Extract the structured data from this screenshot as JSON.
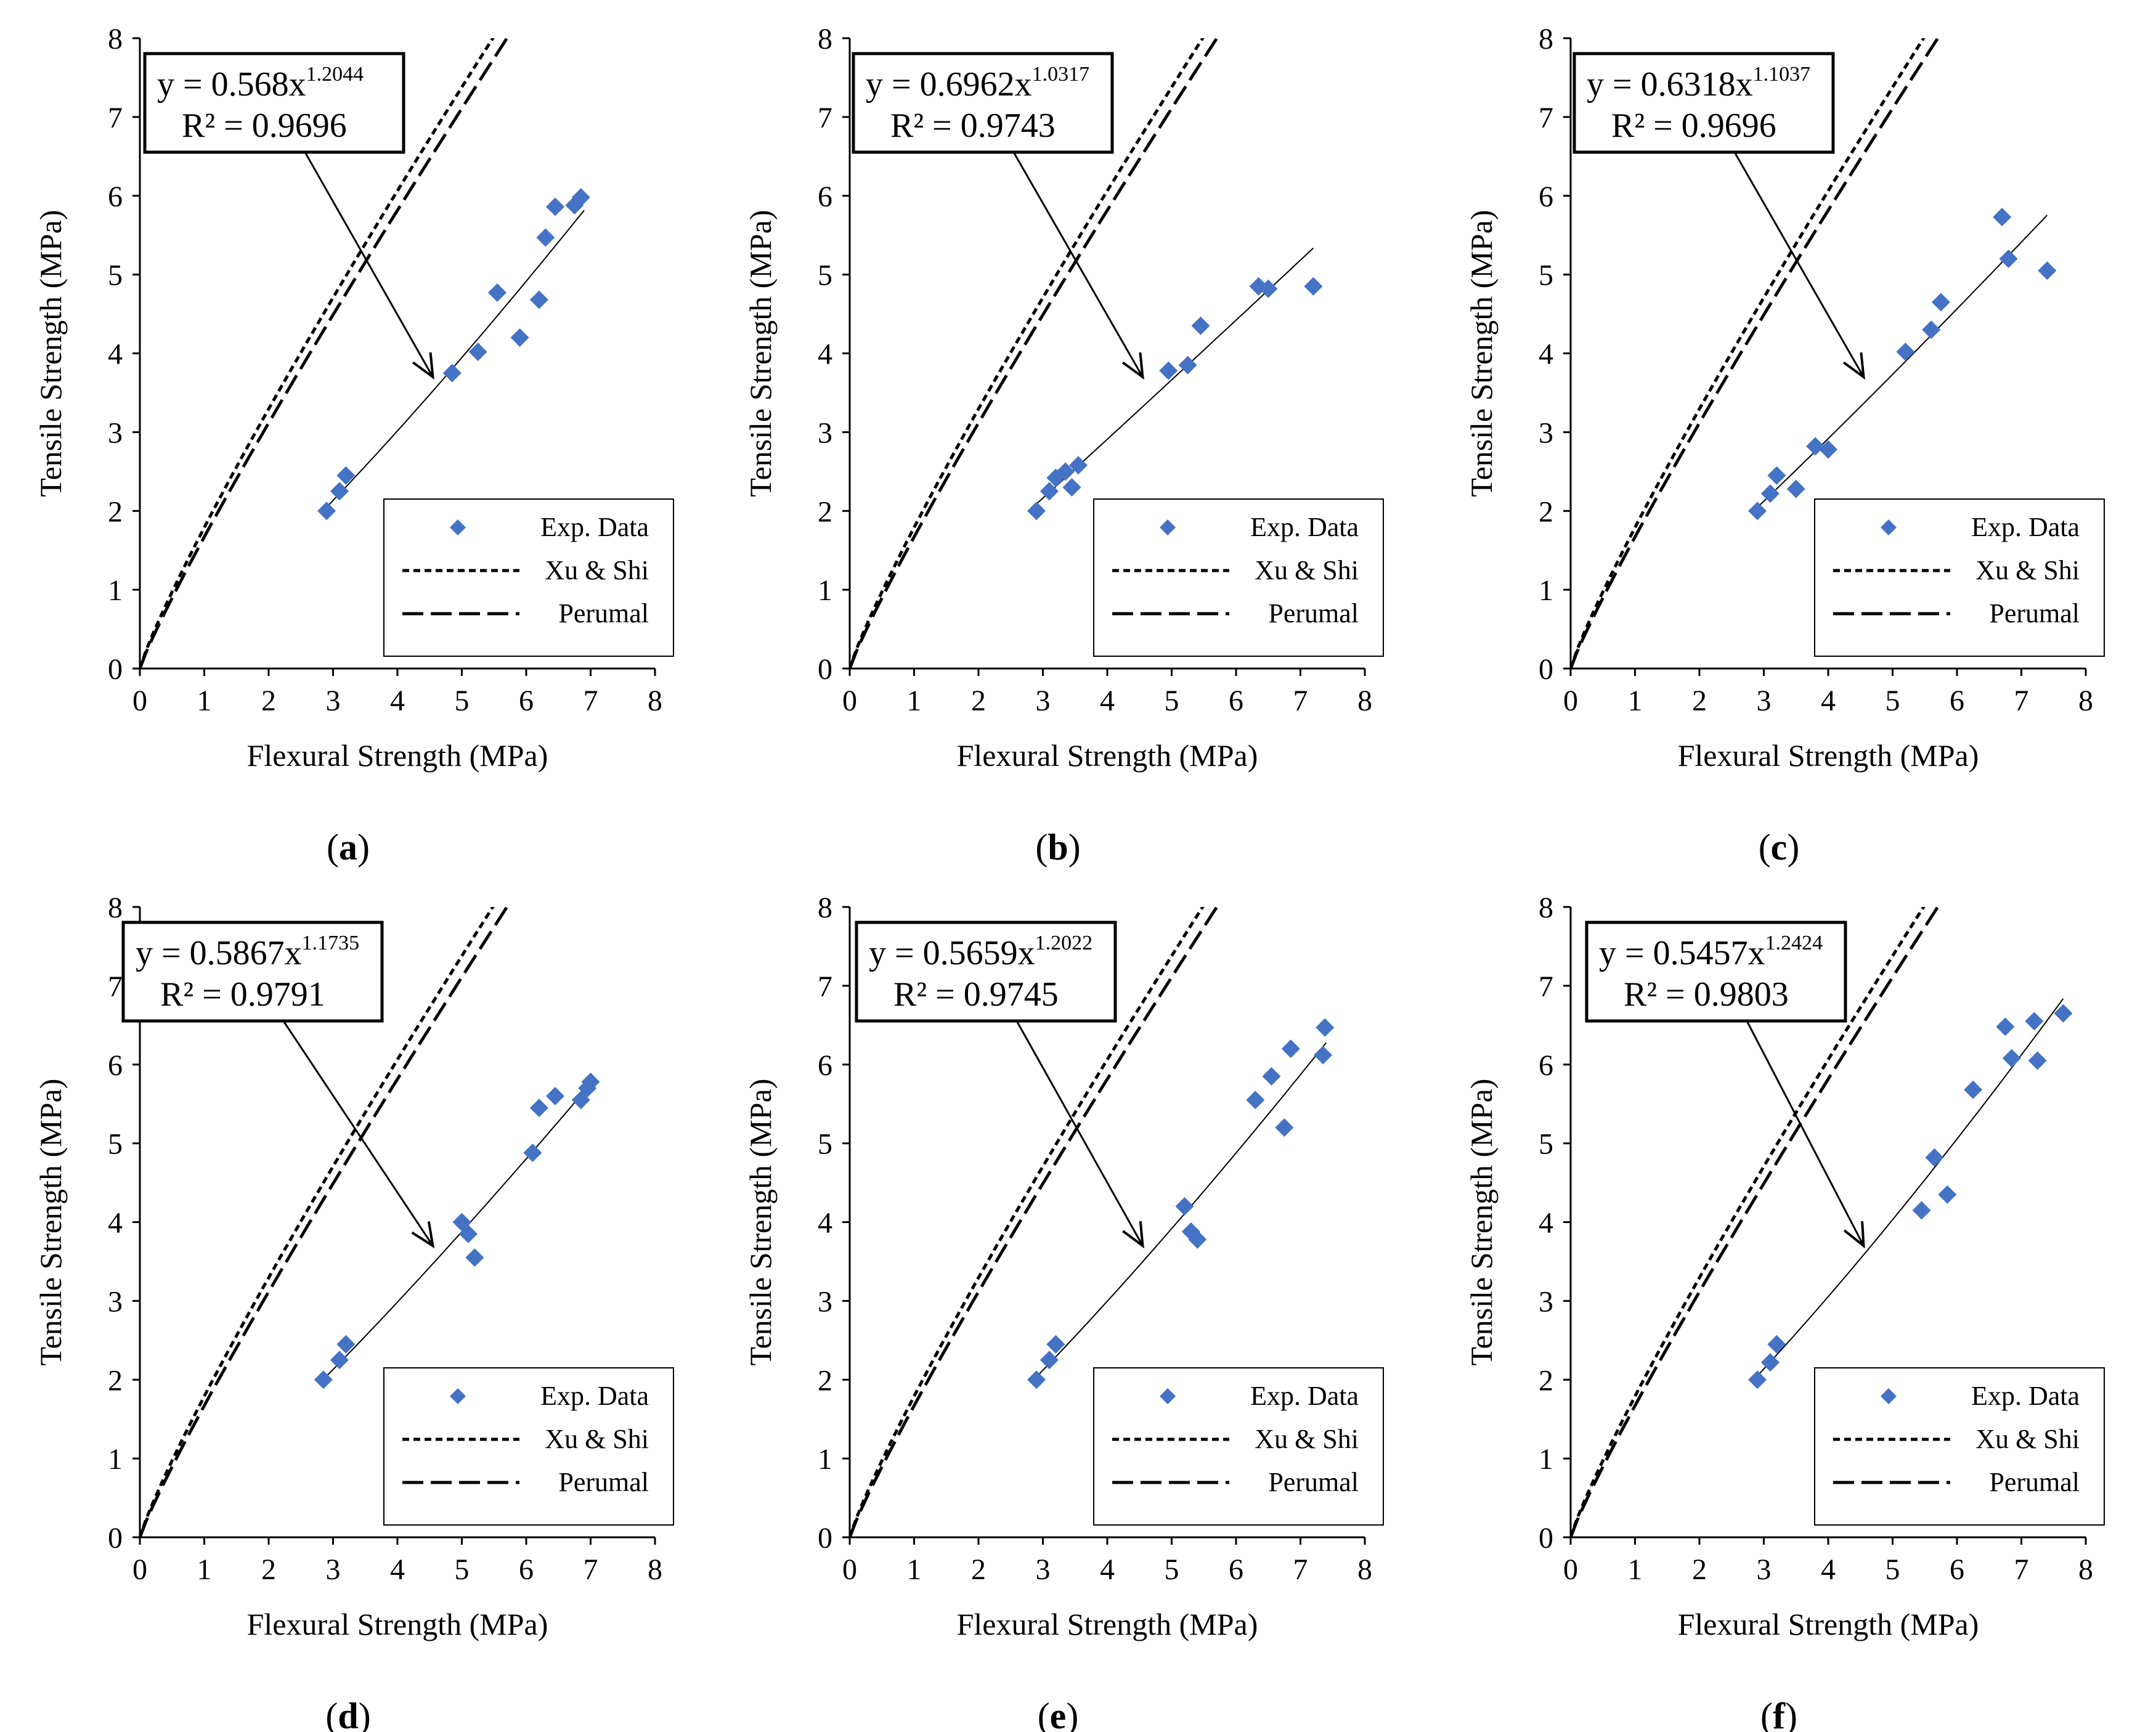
{
  "figure": {
    "x_axis_label": "Flexural Strength (MPa)",
    "y_axis_label": "Tensile Strength (MPa)",
    "legend": {
      "exp": "Exp. Data",
      "xu": "Xu & Shi",
      "perumal": "Perumal"
    },
    "colors": {
      "exp_marker": "#4472C4",
      "lines": "#000000"
    }
  },
  "chart_data": [
    {
      "id": "a",
      "caption": "a",
      "type": "scatter",
      "xlabel": "Flexural Strength (MPa)",
      "ylabel": "Tensile Strength (MPa)",
      "xlim": [
        0,
        8
      ],
      "ylim": [
        0,
        8
      ],
      "xticks": [
        "0",
        "1",
        "2",
        "3",
        "4",
        "5",
        "6",
        "7",
        "8"
      ],
      "yticks": [
        "0",
        "1",
        "2",
        "3",
        "4",
        "5",
        "6",
        "7",
        "8"
      ],
      "legend_position": "bottom-right",
      "fit": {
        "a": 0.568,
        "b": 1.2044,
        "coef": "0.568",
        "exp": "1.2044",
        "eq_prefix": "y = ",
        "r2": "R² = 0.9696",
        "x_range": [
          2.9,
          6.9
        ]
      },
      "series": [
        {
          "name": "Exp. Data",
          "kind": "points",
          "points": [
            [
              2.9,
              2.0
            ],
            [
              3.1,
              2.25
            ],
            [
              3.2,
              2.45
            ],
            [
              4.85,
              3.75
            ],
            [
              5.25,
              4.02
            ],
            [
              5.55,
              4.77
            ],
            [
              5.9,
              4.2
            ],
            [
              6.2,
              4.68
            ],
            [
              6.3,
              5.47
            ],
            [
              6.45,
              5.86
            ],
            [
              6.75,
              5.88
            ],
            [
              6.85,
              5.98
            ]
          ]
        },
        {
          "name": "Xu & Shi",
          "kind": "curve",
          "a": 1.79,
          "b": 0.88
        },
        {
          "name": "Perumal",
          "kind": "curve",
          "a": 1.67,
          "b": 0.9
        }
      ]
    },
    {
      "id": "b",
      "caption": "b",
      "type": "scatter",
      "xlabel": "Flexural Strength (MPa)",
      "ylabel": "Tensile Strength (MPa)",
      "xlim": [
        0,
        8
      ],
      "ylim": [
        0,
        8
      ],
      "xticks": [
        "0",
        "1",
        "2",
        "3",
        "4",
        "5",
        "6",
        "7",
        "8"
      ],
      "yticks": [
        "0",
        "1",
        "2",
        "3",
        "4",
        "5",
        "6",
        "7",
        "8"
      ],
      "legend_position": "bottom-right",
      "fit": {
        "a": 0.6962,
        "b": 1.0317,
        "coef": "0.6962",
        "exp": "1.0317",
        "eq_prefix": "y = ",
        "r2": "R² = 0.9743",
        "x_range": [
          2.9,
          7.2
        ]
      },
      "series": [
        {
          "name": "Exp. Data",
          "kind": "points",
          "points": [
            [
              2.9,
              2.0
            ],
            [
              3.1,
              2.25
            ],
            [
              3.2,
              2.42
            ],
            [
              3.35,
              2.5
            ],
            [
              3.45,
              2.3
            ],
            [
              3.55,
              2.58
            ],
            [
              4.95,
              3.78
            ],
            [
              5.25,
              3.85
            ],
            [
              5.45,
              4.35
            ],
            [
              6.35,
              4.85
            ],
            [
              6.5,
              4.82
            ],
            [
              7.2,
              4.85
            ]
          ]
        },
        {
          "name": "Xu & Shi",
          "kind": "curve",
          "a": 1.79,
          "b": 0.88
        },
        {
          "name": "Perumal",
          "kind": "curve",
          "a": 1.67,
          "b": 0.9
        }
      ]
    },
    {
      "id": "c",
      "caption": "c",
      "type": "scatter",
      "xlabel": "Flexural Strength (MPa)",
      "ylabel": "Tensile Strength (MPa)",
      "xlim": [
        0,
        8
      ],
      "ylim": [
        0,
        8
      ],
      "xticks": [
        "0",
        "1",
        "2",
        "3",
        "4",
        "5",
        "6",
        "7",
        "8"
      ],
      "yticks": [
        "0",
        "1",
        "2",
        "3",
        "4",
        "5",
        "6",
        "7",
        "8"
      ],
      "legend_position": "bottom-right",
      "fit": {
        "a": 0.6318,
        "b": 1.1037,
        "coef": "0.6318",
        "exp": "1.1037",
        "eq_prefix": "y = ",
        "r2": "R² = 0.9696",
        "x_range": [
          2.9,
          7.4
        ]
      },
      "series": [
        {
          "name": "Exp. Data",
          "kind": "points",
          "points": [
            [
              2.9,
              2.0
            ],
            [
              3.1,
              2.22
            ],
            [
              3.2,
              2.45
            ],
            [
              3.5,
              2.28
            ],
            [
              3.8,
              2.82
            ],
            [
              4.0,
              2.78
            ],
            [
              5.2,
              4.02
            ],
            [
              5.6,
              4.3
            ],
            [
              5.75,
              4.65
            ],
            [
              6.7,
              5.73
            ],
            [
              6.8,
              5.2
            ],
            [
              7.4,
              5.05
            ]
          ]
        },
        {
          "name": "Xu & Shi",
          "kind": "curve",
          "a": 1.79,
          "b": 0.88
        },
        {
          "name": "Perumal",
          "kind": "curve",
          "a": 1.67,
          "b": 0.9
        }
      ]
    },
    {
      "id": "d",
      "caption": "d",
      "type": "scatter",
      "xlabel": "Flexural Strength (MPa)",
      "ylabel": "Tensile Strength (MPa)",
      "xlim": [
        0,
        8
      ],
      "ylim": [
        0,
        8
      ],
      "xticks": [
        "0",
        "1",
        "2",
        "3",
        "4",
        "5",
        "6",
        "7",
        "8"
      ],
      "yticks": [
        "0",
        "1",
        "2",
        "3",
        "4",
        "5",
        "6",
        "7",
        "8"
      ],
      "legend_position": "bottom-right",
      "fit": {
        "a": 0.5867,
        "b": 1.1735,
        "coef": "0.5867",
        "exp": "1.1735",
        "eq_prefix": "y = ",
        "r2": "R² = 0.9791",
        "x_range": [
          2.9,
          7.0
        ]
      },
      "series": [
        {
          "name": "Exp. Data",
          "kind": "points",
          "points": [
            [
              2.85,
              2.0
            ],
            [
              3.1,
              2.25
            ],
            [
              3.2,
              2.45
            ],
            [
              5.0,
              4.0
            ],
            [
              5.1,
              3.85
            ],
            [
              5.2,
              3.55
            ],
            [
              6.1,
              4.88
            ],
            [
              6.2,
              5.45
            ],
            [
              6.45,
              5.6
            ],
            [
              6.85,
              5.55
            ],
            [
              6.95,
              5.7
            ],
            [
              7.0,
              5.78
            ]
          ]
        },
        {
          "name": "Xu & Shi",
          "kind": "curve",
          "a": 1.79,
          "b": 0.88
        },
        {
          "name": "Perumal",
          "kind": "curve",
          "a": 1.67,
          "b": 0.9
        }
      ]
    },
    {
      "id": "e",
      "caption": "e",
      "type": "scatter",
      "xlabel": "Flexural Strength (MPa)",
      "ylabel": "Tensile Strength (MPa)",
      "xlim": [
        0,
        8
      ],
      "ylim": [
        0,
        8
      ],
      "xticks": [
        "0",
        "1",
        "2",
        "3",
        "4",
        "5",
        "6",
        "7",
        "8"
      ],
      "yticks": [
        "0",
        "1",
        "2",
        "3",
        "4",
        "5",
        "6",
        "7",
        "8"
      ],
      "legend_position": "bottom-right",
      "fit": {
        "a": 0.5659,
        "b": 1.2022,
        "coef": "0.5659",
        "exp": "1.2022",
        "eq_prefix": "y = ",
        "r2": "R² = 0.9745",
        "x_range": [
          2.9,
          7.4
        ]
      },
      "series": [
        {
          "name": "Exp. Data",
          "kind": "points",
          "points": [
            [
              2.9,
              2.0
            ],
            [
              3.1,
              2.25
            ],
            [
              3.2,
              2.45
            ],
            [
              5.2,
              4.2
            ],
            [
              5.3,
              3.88
            ],
            [
              5.4,
              3.78
            ],
            [
              6.3,
              5.55
            ],
            [
              6.55,
              5.85
            ],
            [
              6.75,
              5.2
            ],
            [
              6.85,
              6.2
            ],
            [
              7.35,
              6.12
            ],
            [
              7.38,
              6.47
            ]
          ]
        },
        {
          "name": "Xu & Shi",
          "kind": "curve",
          "a": 1.79,
          "b": 0.88
        },
        {
          "name": "Perumal",
          "kind": "curve",
          "a": 1.67,
          "b": 0.9
        }
      ]
    },
    {
      "id": "f",
      "caption": "f",
      "type": "scatter",
      "xlabel": "Flexural Strength (MPa)",
      "ylabel": "Tensile Strength (MPa)",
      "xlim": [
        0,
        8
      ],
      "ylim": [
        0,
        8
      ],
      "xticks": [
        "0",
        "1",
        "2",
        "3",
        "4",
        "5",
        "6",
        "7",
        "8"
      ],
      "yticks": [
        "0",
        "1",
        "2",
        "3",
        "4",
        "5",
        "6",
        "7",
        "8"
      ],
      "legend_position": "bottom-right",
      "fit": {
        "a": 0.5457,
        "b": 1.2424,
        "coef": "0.5457",
        "exp": "1.2424",
        "eq_prefix": "y = ",
        "r2": "R² = 0.9803",
        "x_range": [
          2.9,
          7.65
        ]
      },
      "series": [
        {
          "name": "Exp. Data",
          "kind": "points",
          "points": [
            [
              2.9,
              2.0
            ],
            [
              3.1,
              2.22
            ],
            [
              3.2,
              2.45
            ],
            [
              5.45,
              4.15
            ],
            [
              5.65,
              4.82
            ],
            [
              5.85,
              4.35
            ],
            [
              6.25,
              5.68
            ],
            [
              6.75,
              6.48
            ],
            [
              6.85,
              6.08
            ],
            [
              7.2,
              6.55
            ],
            [
              7.25,
              6.05
            ],
            [
              7.65,
              6.65
            ]
          ]
        },
        {
          "name": "Xu & Shi",
          "kind": "curve",
          "a": 1.79,
          "b": 0.88
        },
        {
          "name": "Perumal",
          "kind": "curve",
          "a": 1.67,
          "b": 0.9
        }
      ]
    }
  ]
}
